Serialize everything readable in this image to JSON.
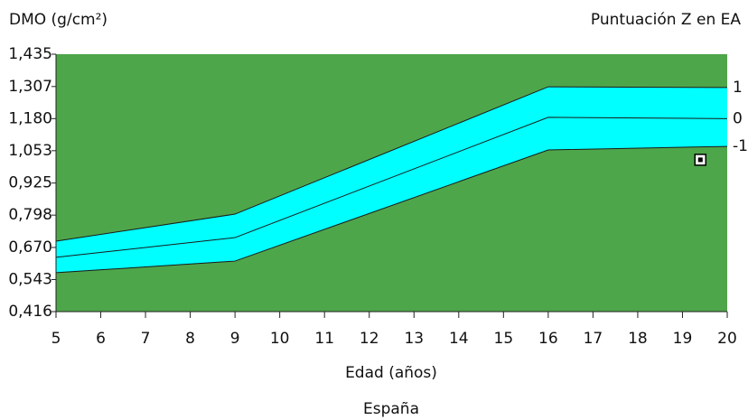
{
  "chart_data": {
    "type": "line",
    "title": "DMO (g/cm²)",
    "subtitle": "Puntuación Z en EA",
    "x_label": "Edad (años)",
    "footer": "España",
    "background": "#4ea64a",
    "band_color": "#00ffff",
    "xlim": [
      5,
      20
    ],
    "xticks": [
      5,
      6,
      7,
      8,
      9,
      10,
      11,
      12,
      13,
      14,
      15,
      16,
      17,
      18,
      19,
      20
    ],
    "ylim": [
      0.416,
      1.435
    ],
    "yticks": [
      {
        "value": 0.416,
        "label": "0,416"
      },
      {
        "value": 0.543,
        "label": "0,543"
      },
      {
        "value": 0.67,
        "label": "0,670"
      },
      {
        "value": 0.798,
        "label": "0,798"
      },
      {
        "value": 0.925,
        "label": "0,925"
      },
      {
        "value": 1.053,
        "label": "1,053"
      },
      {
        "value": 1.18,
        "label": "1,180"
      },
      {
        "value": 1.307,
        "label": "1,307"
      },
      {
        "value": 1.435,
        "label": "1,435"
      }
    ],
    "series": [
      {
        "name": "1",
        "color": "#1a1a1a",
        "x": [
          5,
          9,
          16,
          20
        ],
        "values": [
          0.695,
          0.802,
          1.306,
          1.303
        ]
      },
      {
        "name": "0",
        "color": "#1a1a1a",
        "x": [
          5,
          9,
          16,
          20
        ],
        "values": [
          0.631,
          0.709,
          1.185,
          1.18
        ]
      },
      {
        "name": "-1",
        "color": "#1a1a1a",
        "x": [
          5,
          9,
          16,
          20
        ],
        "values": [
          0.57,
          0.616,
          1.056,
          1.07
        ]
      }
    ],
    "point": {
      "x": 19.4,
      "y": 1.017
    }
  }
}
